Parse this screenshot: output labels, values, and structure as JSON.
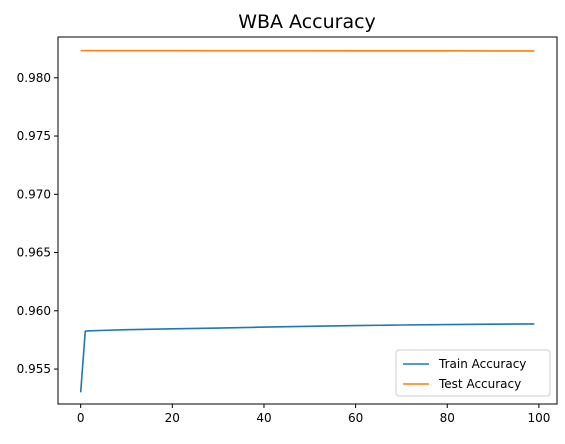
{
  "chart_data": {
    "type": "line",
    "title": "WBA Accuracy",
    "xlabel": "",
    "ylabel": "",
    "xlim": [
      -4.95,
      103.95
    ],
    "ylim": [
      0.952,
      0.9835
    ],
    "xticks": [
      0,
      20,
      40,
      60,
      80,
      100
    ],
    "xtick_labels": [
      "0",
      "20",
      "40",
      "60",
      "80",
      "100"
    ],
    "yticks": [
      0.955,
      0.96,
      0.965,
      0.97,
      0.975,
      0.98
    ],
    "ytick_labels": [
      "0.955",
      "0.960",
      "0.965",
      "0.970",
      "0.975",
      "0.980"
    ],
    "grid": false,
    "legend_position": "bottom-right",
    "series": [
      {
        "name": "Train Accuracy",
        "color": "#1f77b4",
        "x": [
          0,
          1,
          2,
          5,
          10,
          20,
          30,
          40,
          50,
          60,
          70,
          80,
          90,
          99
        ],
        "y": [
          0.953,
          0.95825,
          0.95828,
          0.95832,
          0.95838,
          0.95845,
          0.95852,
          0.9586,
          0.95867,
          0.95873,
          0.95878,
          0.95882,
          0.95885,
          0.95887
        ]
      },
      {
        "name": "Test Accuracy",
        "color": "#ff7f0e",
        "x": [
          0,
          10,
          20,
          30,
          40,
          50,
          60,
          70,
          80,
          90,
          99
        ],
        "y": [
          0.98233,
          0.98233,
          0.98233,
          0.98232,
          0.98232,
          0.98232,
          0.98231,
          0.98231,
          0.98231,
          0.9823,
          0.9823
        ]
      }
    ]
  }
}
